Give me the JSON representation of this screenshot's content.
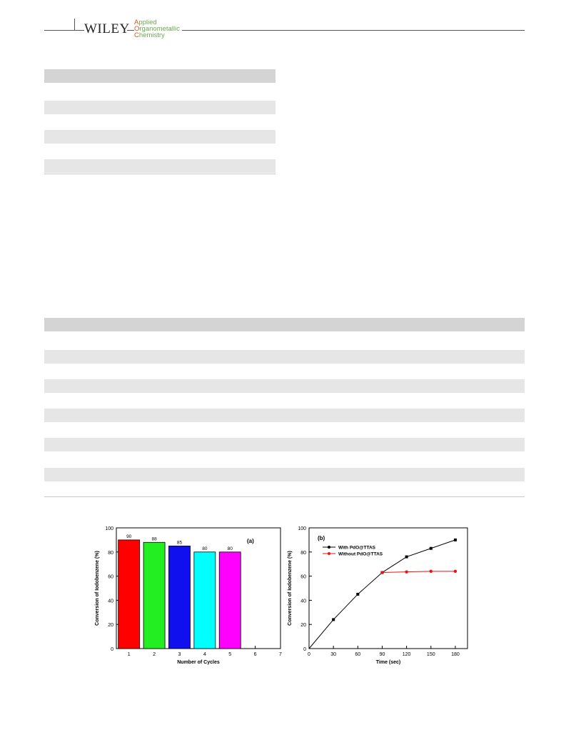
{
  "header": {
    "publisher": "WILEY",
    "journal_lines": [
      {
        "cap": "A",
        "rest": "pplied"
      },
      {
        "cap": "O",
        "rest": "rganometallic"
      },
      {
        "cap": "C",
        "rest": "hemistry"
      }
    ]
  },
  "chart_data": [
    {
      "type": "bar",
      "panel_label": "(a)",
      "xlabel": "Number of Cycles",
      "ylabel": "Conversion of Iodobenzene (%)",
      "xlim": [
        0.5,
        7
      ],
      "ylim": [
        0,
        100
      ],
      "xticks": [
        1,
        2,
        3,
        4,
        5,
        6,
        7
      ],
      "yticks": [
        0,
        20,
        40,
        60,
        80,
        100
      ],
      "categories": [
        1,
        2,
        3,
        4,
        5
      ],
      "values": [
        90,
        88,
        85,
        80,
        80
      ],
      "data_labels": [
        "90",
        "88",
        "85",
        "80",
        "80"
      ],
      "colors": [
        "#ff0000",
        "#22ee22",
        "#1010ee",
        "#00ffff",
        "#ff00ff"
      ]
    },
    {
      "type": "line",
      "panel_label": "(b)",
      "xlabel": "Time (sec)",
      "ylabel": "Conversion of Iodobenzene (%)",
      "xlim": [
        0,
        195
      ],
      "ylim": [
        0,
        100
      ],
      "xticks": [
        0,
        30,
        60,
        90,
        120,
        150,
        180
      ],
      "yticks": [
        0,
        20,
        40,
        60,
        80,
        100
      ],
      "legend_position": "top-left",
      "series": [
        {
          "name": "With PdO@TTAS",
          "color": "#000000",
          "x": [
            0,
            30,
            60,
            90,
            120,
            150,
            180
          ],
          "y": [
            0,
            24,
            45,
            63,
            76,
            83,
            90
          ]
        },
        {
          "name": "Without PdO@TTAS",
          "color": "#ee1111",
          "x": [
            90,
            120,
            150,
            180
          ],
          "y": [
            63,
            63.5,
            64,
            64
          ]
        }
      ]
    }
  ]
}
